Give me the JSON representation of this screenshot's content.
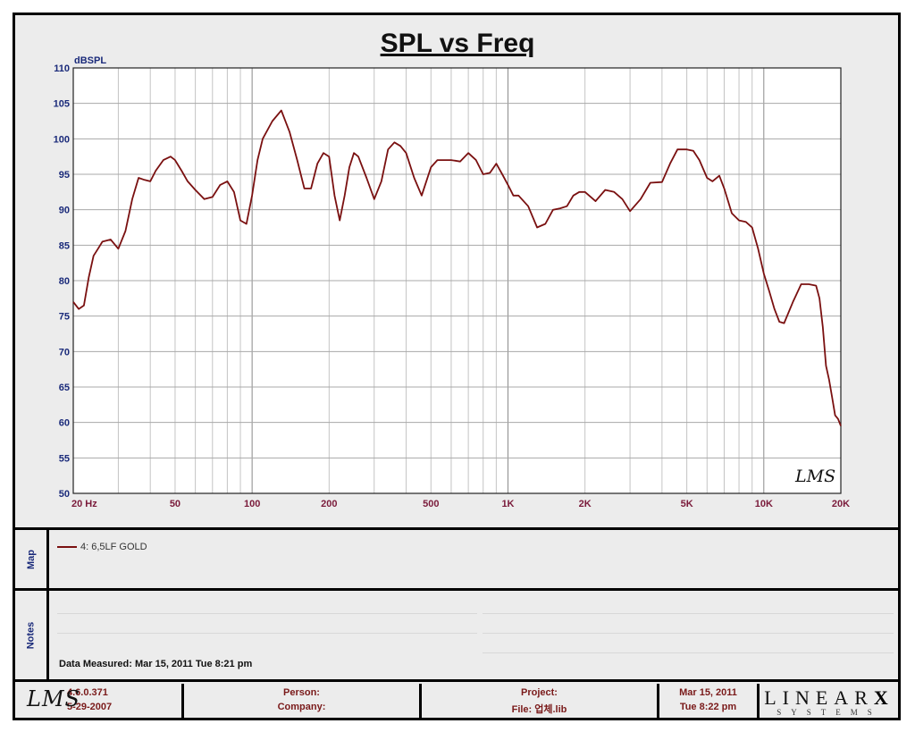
{
  "chart_data": {
    "type": "line",
    "title": "SPL vs Freq",
    "ylabel": "dBSPL",
    "x_scale": "log",
    "xlim": [
      20,
      20000
    ],
    "ylim": [
      50,
      110
    ],
    "y_ticks": [
      50,
      55,
      60,
      65,
      70,
      75,
      80,
      85,
      90,
      95,
      100,
      105,
      110
    ],
    "x_ticks": [
      {
        "value": 20,
        "label": "20  Hz"
      },
      {
        "value": 50,
        "label": "50"
      },
      {
        "value": 100,
        "label": "100"
      },
      {
        "value": 200,
        "label": "200"
      },
      {
        "value": 500,
        "label": "500"
      },
      {
        "value": 1000,
        "label": "1K"
      },
      {
        "value": 2000,
        "label": "2K"
      },
      {
        "value": 5000,
        "label": "5K"
      },
      {
        "value": 10000,
        "label": "10K"
      },
      {
        "value": 20000,
        "label": "20K"
      }
    ],
    "grid": true,
    "series": [
      {
        "name": "4: 6,5LF GOLD",
        "color": "#7a1010",
        "x": [
          20,
          21,
          22,
          23,
          24,
          25,
          26,
          28,
          30,
          32,
          34,
          36,
          38,
          40,
          42,
          45,
          48,
          50,
          53,
          56,
          60,
          65,
          70,
          75,
          80,
          85,
          90,
          95,
          100,
          105,
          110,
          120,
          130,
          140,
          150,
          160,
          170,
          180,
          190,
          200,
          210,
          220,
          230,
          240,
          250,
          260,
          280,
          300,
          320,
          340,
          360,
          380,
          400,
          430,
          460,
          500,
          530,
          560,
          600,
          650,
          700,
          750,
          800,
          850,
          900,
          950,
          1000,
          1050,
          1100,
          1200,
          1300,
          1400,
          1500,
          1600,
          1700,
          1800,
          1900,
          2000,
          2200,
          2400,
          2600,
          2800,
          3000,
          3300,
          3600,
          4000,
          4300,
          4600,
          5000,
          5300,
          5600,
          6000,
          6300,
          6700,
          7000,
          7500,
          8000,
          8500,
          9000,
          9500,
          10000,
          10500,
          11000,
          11500,
          12000,
          13000,
          14000,
          15000,
          16000,
          16500,
          17000,
          17500,
          18000,
          18500,
          19000,
          19500,
          20000
        ],
        "y": [
          77.0,
          76.0,
          76.5,
          80.5,
          83.5,
          84.5,
          85.5,
          85.8,
          84.5,
          87.0,
          91.5,
          94.5,
          94.2,
          94.0,
          95.5,
          97.0,
          97.5,
          97.0,
          95.5,
          94.0,
          92.8,
          91.5,
          91.8,
          93.5,
          94.0,
          92.5,
          88.5,
          88.0,
          92.0,
          97.0,
          100.0,
          102.5,
          104.0,
          101.0,
          97.0,
          93.0,
          93.0,
          96.5,
          98.0,
          97.5,
          92.0,
          88.5,
          92.0,
          96.0,
          98.0,
          97.5,
          94.5,
          91.5,
          94.0,
          98.5,
          99.5,
          99.0,
          98.0,
          94.5,
          92.0,
          96.0,
          97.0,
          97.0,
          97.0,
          96.8,
          98.0,
          97.0,
          95.0,
          95.2,
          96.5,
          95.0,
          93.5,
          92.0,
          92.0,
          90.5,
          87.5,
          88.0,
          90.0,
          90.2,
          90.5,
          92.0,
          92.5,
          92.5,
          91.2,
          92.8,
          92.5,
          91.5,
          89.8,
          91.5,
          93.8,
          93.9,
          96.5,
          98.5,
          98.5,
          98.3,
          97.0,
          94.5,
          94.0,
          94.8,
          93.0,
          89.5,
          88.5,
          88.3,
          87.5,
          84.5,
          81.0,
          78.5,
          76.0,
          74.2,
          74.0,
          77.0,
          79.5,
          79.5,
          79.3,
          77.5,
          73.5,
          68.0,
          66.0,
          63.5,
          61.0,
          60.5,
          59.5
        ]
      }
    ]
  },
  "notes": {
    "label": "Notes",
    "data_measured": "Data Measured: Mar 15, 2011  Tue  8:21 pm"
  },
  "map": {
    "label": "Map"
  },
  "footer": {
    "version": "4.6.0.371",
    "version_date": "5-29-2007",
    "person_label": "Person:",
    "company_label": "Company:",
    "project_label": "Project:",
    "file_label": "File: 업체.lib",
    "date": "Mar 15, 2011",
    "time": "Tue  8:22 pm"
  },
  "logos": {
    "lms": "LMS",
    "linearx_main": "LINEAR",
    "linearx_x": "X",
    "linearx_sub": "SYSTEMS"
  }
}
